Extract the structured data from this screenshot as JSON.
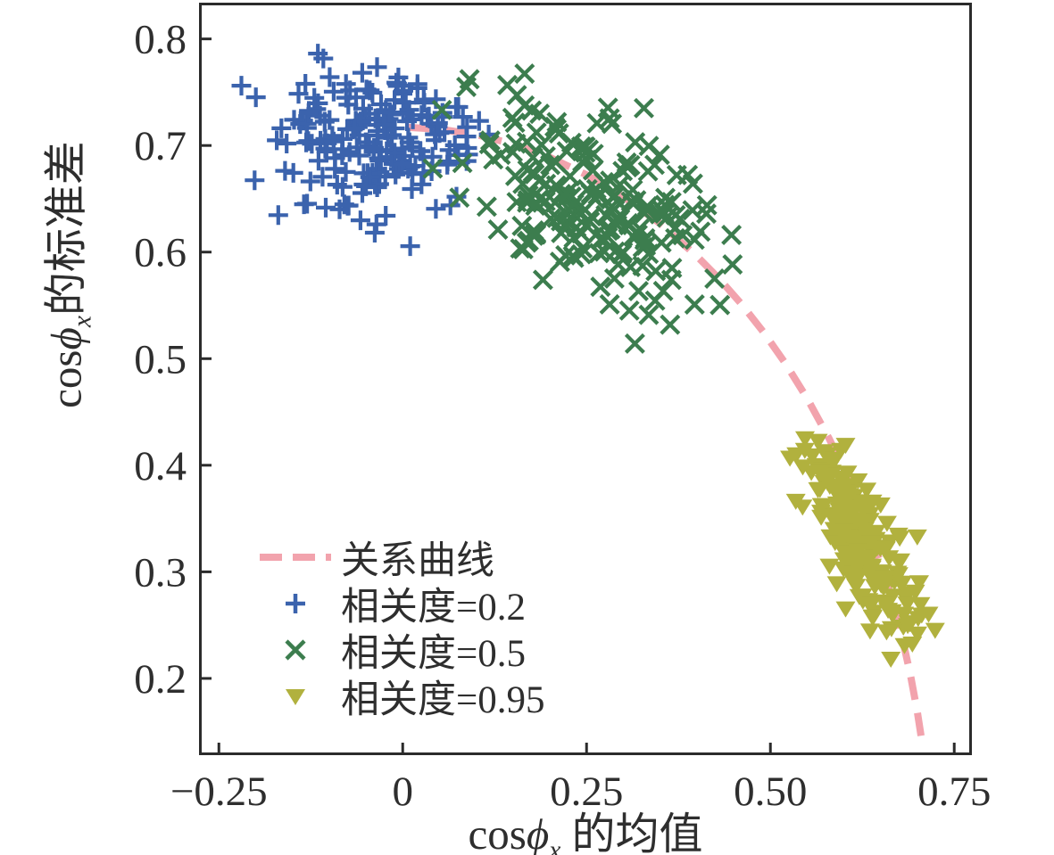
{
  "figure": {
    "background": "#ffffff",
    "frame_color": "#2b2b2b",
    "text_color": "#2e2e2e"
  },
  "chart_data": {
    "type": "scatter",
    "title": "",
    "xlabel": "cosϕx 的均值",
    "ylabel": "cosϕx 的标准差",
    "xlabel_parts": {
      "func": "cos",
      "phi": "ϕ",
      "sub": "x",
      "rest": " 的均值"
    },
    "ylabel_parts": {
      "func": "cos",
      "phi": "ϕ",
      "sub": "x",
      "rest": "的标准差"
    },
    "xlim": [
      -0.277,
      0.774
    ],
    "ylim": [
      0.128,
      0.834
    ],
    "grid": false,
    "legend_position": "inside lower-left",
    "x_ticks": {
      "values": [
        -0.25,
        0,
        0.25,
        0.5,
        0.75
      ],
      "labels": [
        "−0.25",
        "0",
        "0.25",
        "0.50",
        "0.75"
      ]
    },
    "y_ticks": {
      "values": [
        0.2,
        0.3,
        0.4,
        0.5,
        0.6,
        0.7,
        0.8
      ],
      "labels": [
        "0.2",
        "0.3",
        "0.4",
        "0.5",
        "0.6",
        "0.7",
        "0.8"
      ]
    },
    "series": [
      {
        "name": "相关度=0.2",
        "marker": "plus",
        "color": "#3b63ad",
        "n": 200,
        "mean": [
          -0.035,
          0.706
        ],
        "std": [
          0.066,
          0.037
        ],
        "corr": 0.15,
        "x_range": [
          -0.226,
          0.13
        ],
        "y_range": [
          0.6,
          0.796
        ]
      },
      {
        "name": "相关度=0.5",
        "marker": "x",
        "color": "#3c7d4e",
        "n": 200,
        "mean": [
          0.252,
          0.655
        ],
        "std": [
          0.078,
          0.05
        ],
        "corr": -0.52,
        "x_range": [
          0.03,
          0.45
        ],
        "y_range": [
          0.505,
          0.768
        ]
      },
      {
        "name": "相关度=0.95",
        "marker": "triangle-down",
        "color": "#b1b13e",
        "n": 200,
        "mean": [
          0.622,
          0.33
        ],
        "std": [
          0.04,
          0.046
        ],
        "corr": -0.76,
        "x_range": [
          0.52,
          0.75
        ],
        "y_range": [
          0.205,
          0.435
        ]
      }
    ],
    "curve": {
      "name": "关系曲线",
      "color": "#f2a3ad",
      "width": 8,
      "dash": [
        26,
        15
      ],
      "points": [
        [
          0.005,
          0.7171
        ],
        [
          0.05,
          0.7154
        ],
        [
          0.1,
          0.7102
        ],
        [
          0.15,
          0.7014
        ],
        [
          0.2,
          0.6889
        ],
        [
          0.25,
          0.6725
        ],
        [
          0.3,
          0.6519
        ],
        [
          0.35,
          0.6267
        ],
        [
          0.4,
          0.5962
        ],
        [
          0.43,
          0.5752
        ],
        [
          0.46,
          0.5517
        ],
        [
          0.49,
          0.5254
        ],
        [
          0.52,
          0.496
        ],
        [
          0.55,
          0.4628
        ],
        [
          0.58,
          0.4249
        ],
        [
          0.6,
          0.3964
        ],
        [
          0.62,
          0.3646
        ],
        [
          0.64,
          0.3285
        ],
        [
          0.66,
          0.2866
        ],
        [
          0.68,
          0.2357
        ],
        [
          0.69,
          0.2048
        ],
        [
          0.7,
          0.1679
        ],
        [
          0.705,
          0.1457
        ]
      ]
    }
  },
  "legend": {
    "items": [
      {
        "label": "关系曲线",
        "swatch": "pink-dashed-line"
      },
      {
        "label": "相关度=0.2",
        "swatch": "blue-plus"
      },
      {
        "label": "相关度=0.5",
        "swatch": "green-x"
      },
      {
        "label": "相关度=0.95",
        "swatch": "olive-triangle-down"
      }
    ]
  }
}
